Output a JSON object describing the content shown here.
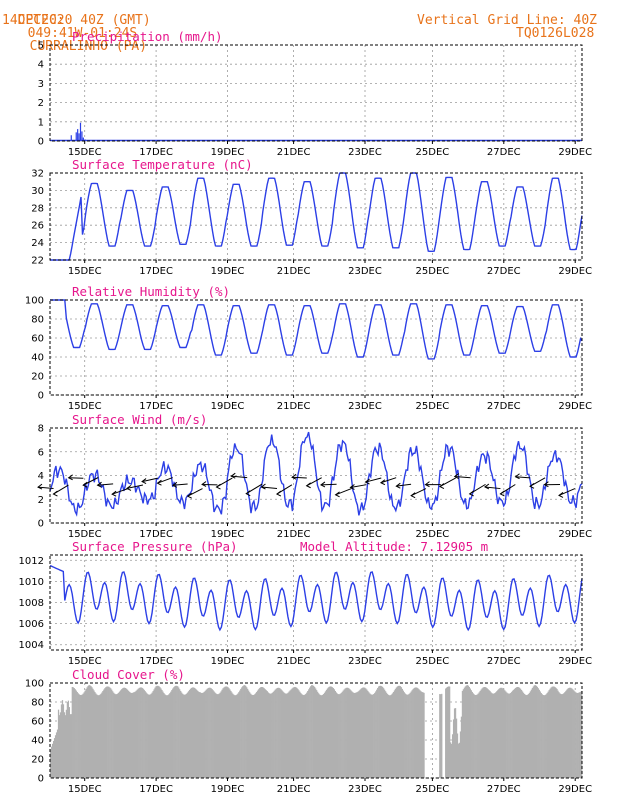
{
  "header": {
    "source": "CPTEC:",
    "coords": "049:41W-01:24S",
    "location": "CURRALINHO (PA)",
    "init": "14DEC2020 40Z (GMT)",
    "grid_label": "Vertical Grid Line: 40Z",
    "code": "TQ0126L028"
  },
  "colors": {
    "title": "#e6168c",
    "header": "#e8731a",
    "series": "#2c3fe6",
    "cloud": "#b0b0b0",
    "wind_arrow": "#000000"
  },
  "chart_data": [
    {
      "type": "bar",
      "title": "Precipitation (mm/h)",
      "x_start_day": 14,
      "x_end_day": 29,
      "xticks": [
        "15DEC",
        "17DEC",
        "19DEC",
        "21DEC",
        "23DEC",
        "25DEC",
        "27DEC",
        "29DEC"
      ],
      "yticks": [
        0,
        1,
        2,
        3,
        4,
        5
      ],
      "ylim": [
        0,
        5
      ],
      "grid": true,
      "points": [
        [
          14.6,
          0.3
        ],
        [
          14.74,
          0.45
        ],
        [
          14.78,
          0.62
        ],
        [
          14.82,
          0.4
        ],
        [
          14.86,
          0.95
        ],
        [
          14.9,
          0.5
        ],
        [
          14.94,
          0.18
        ],
        [
          14.99,
          0.08
        ],
        [
          15.05,
          0.04
        ]
      ]
    },
    {
      "type": "line",
      "title": "Surface Temperature (nC)",
      "x_start_day": 14,
      "x_end_day": 29,
      "xticks": [
        "15DEC",
        "17DEC",
        "19DEC",
        "21DEC",
        "23DEC",
        "25DEC",
        "27DEC",
        "29DEC"
      ],
      "yticks": [
        22,
        24,
        26,
        28,
        30,
        32
      ],
      "ylim": [
        22,
        32
      ],
      "grid": true,
      "daily_min": [
        23.6,
        23.6,
        23.6,
        23.8,
        23.6,
        23.6,
        23.7,
        23.6,
        23.4,
        23.4,
        23.0,
        23.2,
        23.6,
        23.6,
        23.2,
        22.8
      ],
      "daily_max": [
        29.8,
        30.8,
        30.0,
        30.4,
        31.4,
        30.7,
        31.4,
        31.0,
        32.0,
        31.4,
        32.0,
        31.5,
        31.0,
        30.4,
        31.4
      ],
      "start_value": 22.0
    },
    {
      "type": "line",
      "title": "Relative Humidity (%)",
      "x_start_day": 14,
      "x_end_day": 29,
      "xticks": [
        "15DEC",
        "17DEC",
        "19DEC",
        "21DEC",
        "23DEC",
        "25DEC",
        "27DEC",
        "29DEC"
      ],
      "yticks": [
        0,
        20,
        40,
        60,
        80,
        100
      ],
      "ylim": [
        0,
        100
      ],
      "grid": true,
      "daily_min": [
        50,
        48,
        48,
        50,
        42,
        44,
        42,
        44,
        40,
        42,
        38,
        42,
        44,
        46,
        40
      ],
      "daily_max": [
        98,
        96,
        95,
        94,
        95,
        94,
        95,
        94,
        96,
        95,
        96,
        95,
        94,
        93,
        95,
        74
      ],
      "start_value": 100
    },
    {
      "type": "line",
      "title": "Surface Wind (m/s)",
      "x_start_day": 14,
      "x_end_day": 29,
      "xticks": [
        "15DEC",
        "17DEC",
        "19DEC",
        "21DEC",
        "23DEC",
        "25DEC",
        "27DEC",
        "29DEC"
      ],
      "yticks": [
        0,
        2,
        4,
        6,
        8
      ],
      "ylim": [
        0,
        8
      ],
      "grid": true,
      "daily_min": [
        1.2,
        1.5,
        2.0,
        1.8,
        1.2,
        1.4,
        1.6,
        1.5,
        1.2,
        1.4,
        1.5,
        1.6,
        1.8,
        1.6,
        1.8
      ],
      "daily_max": [
        4.4,
        4.0,
        3.5,
        4.6,
        4.8,
        6.2,
        6.8,
        7.2,
        6.6,
        6.2,
        6.0,
        6.2,
        5.6,
        6.4,
        5.6
      ],
      "start_value": 2.8,
      "arrows_note": "wind direction arrows"
    },
    {
      "type": "line",
      "title": "Surface Pressure (hPa)",
      "annotation": "Model Altitude: 7.12905 m",
      "x_start_day": 14,
      "x_end_day": 29,
      "xticks": [
        "15DEC",
        "17DEC",
        "19DEC",
        "21DEC",
        "23DEC",
        "25DEC",
        "27DEC",
        "29DEC"
      ],
      "yticks": [
        1004,
        1006,
        1008,
        1010,
        1012
      ],
      "ylim": [
        1003.5,
        1012.5
      ],
      "grid": true,
      "start_value": 1011.5
    },
    {
      "type": "bar",
      "title": "Cloud Cover (%)",
      "x_start_day": 14,
      "x_end_day": 29,
      "xticks": [
        "15DEC",
        "17DEC",
        "19DEC",
        "21DEC",
        "23DEC",
        "25DEC",
        "27DEC",
        "29DEC"
      ],
      "yticks": [
        0,
        20,
        40,
        60,
        80,
        100
      ],
      "ylim": [
        0,
        100
      ],
      "grid": true,
      "typical_level": 94
    }
  ]
}
